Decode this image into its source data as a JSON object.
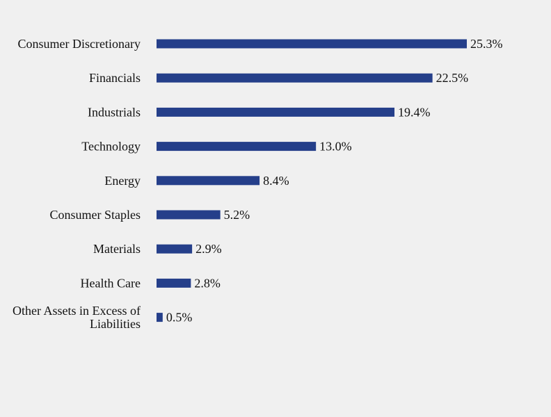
{
  "chart_data": {
    "type": "bar",
    "orientation": "horizontal",
    "categories": [
      "Consumer Discretionary",
      "Financials",
      "Industrials",
      "Technology",
      "Energy",
      "Consumer Staples",
      "Materials",
      "Health Care",
      "Other Assets in Excess of Liabilities"
    ],
    "category_lines": [
      [
        "Consumer Discretionary"
      ],
      [
        "Financials"
      ],
      [
        "Industrials"
      ],
      [
        "Technology"
      ],
      [
        "Energy"
      ],
      [
        "Consumer Staples"
      ],
      [
        "Materials"
      ],
      [
        "Health Care"
      ],
      [
        "Other Assets in Excess of",
        "Liabilities"
      ]
    ],
    "values": [
      25.3,
      22.5,
      19.4,
      13.0,
      8.4,
      5.2,
      2.9,
      2.8,
      0.5
    ],
    "value_labels": [
      "25.3%",
      "22.5%",
      "19.4%",
      "13.0%",
      "8.4%",
      "5.2%",
      "2.9%",
      "2.8%",
      "0.5%"
    ],
    "unit": "%",
    "title": "",
    "xlabel": "",
    "ylabel": "",
    "grid": false,
    "legend": "none",
    "colors": {
      "bar": "#253f8a",
      "text": "#111111",
      "background": "#f0f0f0"
    }
  }
}
